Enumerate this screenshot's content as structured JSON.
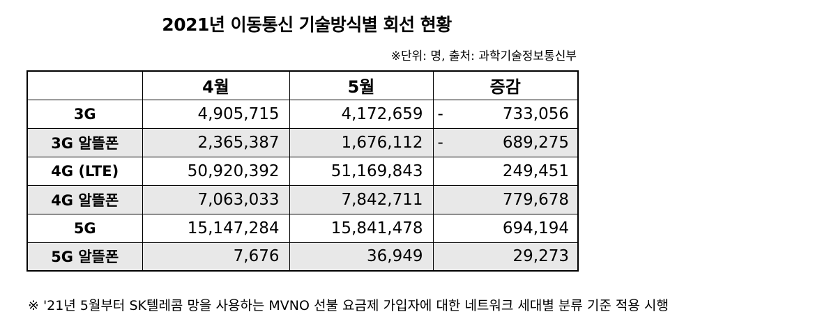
{
  "title": "2021년 이동통신 기술방식별 회선 현황",
  "unit_note": "※단위: 명, 출처: 과학기술정보통신부",
  "table": {
    "headers": [
      "",
      "4월",
      "5월",
      "증감"
    ],
    "rows": [
      {
        "label": "3G",
        "april": "4,905,715",
        "may": "4,172,659",
        "sign": "-",
        "change": "733,056",
        "shaded": false
      },
      {
        "label": "3G 알뜰폰",
        "april": "2,365,387",
        "may": "1,676,112",
        "sign": "-",
        "change": "689,275",
        "shaded": true
      },
      {
        "label": "4G (LTE)",
        "april": "50,920,392",
        "may": "51,169,843",
        "sign": "",
        "change": "249,451",
        "shaded": false
      },
      {
        "label": "4G 알뜰폰",
        "april": "7,063,033",
        "may": "7,842,711",
        "sign": "",
        "change": "779,678",
        "shaded": true
      },
      {
        "label": "5G",
        "april": "15,147,284",
        "may": "15,841,478",
        "sign": "",
        "change": "694,194",
        "shaded": false
      },
      {
        "label": "5G 알뜰폰",
        "april": "7,676",
        "may": "36,949",
        "sign": "",
        "change": "29,273",
        "shaded": true
      }
    ]
  },
  "footnote": "※ '21년 5월부터 SK텔레콤 망을 사용하는 MVNO 선불 요금제 가입자에 대한 네트워크 세대별 분류 기준 적용 시행",
  "colors": {
    "shaded_row": "#e8e8e8",
    "border": "#000000"
  }
}
